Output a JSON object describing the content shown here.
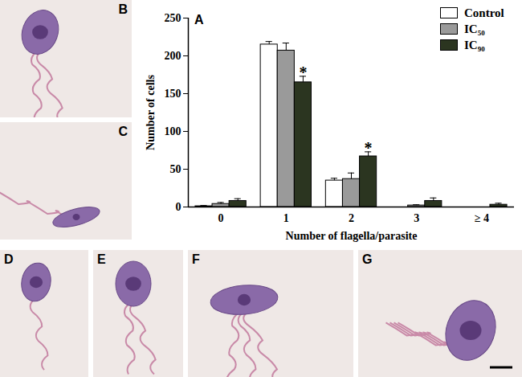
{
  "chart_data": {
    "type": "bar",
    "panel_label": "A",
    "x_label": "Number of flagella/parasite",
    "y_label": "Number of cells",
    "categories": [
      "0",
      "1",
      "2",
      "3",
      "≥ 4"
    ],
    "ylim": [
      0,
      250
    ],
    "yticks": [
      0,
      50,
      100,
      150,
      200,
      250
    ],
    "legend": "top-right",
    "series": [
      {
        "name": "Control",
        "color": "#ffffff",
        "values": [
          1,
          215,
          35,
          0,
          0
        ],
        "errors": [
          1,
          4,
          3,
          0,
          0
        ]
      },
      {
        "name": "IC₅₀",
        "color": "#9a9a9a",
        "values": [
          4,
          207,
          37,
          2,
          0
        ],
        "errors": [
          2,
          10,
          8,
          1,
          0
        ]
      },
      {
        "name": "IC₉₀",
        "color": "#2b3520",
        "values": [
          8,
          165,
          67,
          8,
          3
        ],
        "errors": [
          3,
          8,
          6,
          4,
          2
        ]
      }
    ],
    "annotations": [
      {
        "category": "1",
        "series": "IC₉₀",
        "text": "*"
      },
      {
        "category": "2",
        "series": "IC₉₀",
        "text": "*"
      }
    ]
  },
  "panels": [
    "B",
    "C",
    "D",
    "E",
    "F",
    "G"
  ]
}
